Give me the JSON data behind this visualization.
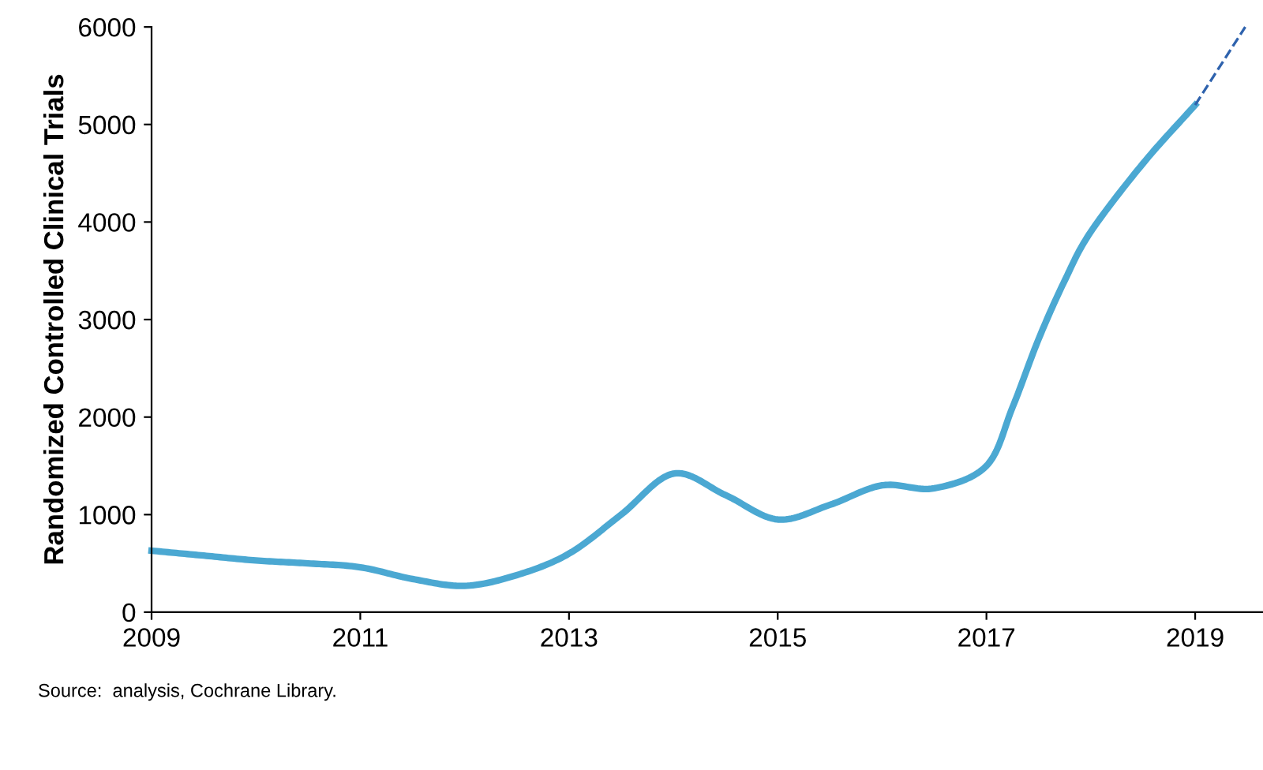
{
  "chart_data": {
    "type": "line",
    "ylabel": "Randomized Controlled Clinical Trials",
    "xlim": [
      2009,
      2019.65
    ],
    "xticks": [
      2009,
      2011,
      2013,
      2015,
      2017,
      2019
    ],
    "ylim": [
      0,
      6000
    ],
    "yticks": [
      0,
      1000,
      2000,
      3000,
      4000,
      5000,
      6000
    ],
    "grid": false,
    "legend": false,
    "series": [
      {
        "color": "#4ba8d2",
        "line_style": "solid",
        "x": [
          2009,
          2009.5,
          2010,
          2010.5,
          2011,
          2011.5,
          2012,
          2012.5,
          2013,
          2013.5,
          2014,
          2014.5,
          2015,
          2015.5,
          2016,
          2016.5,
          2017,
          2017.25,
          2017.5,
          2017.75,
          2018,
          2018.5,
          2019
        ],
        "values": [
          630,
          580,
          530,
          500,
          460,
          340,
          270,
          380,
          600,
          1000,
          1420,
          1200,
          950,
          1100,
          1300,
          1270,
          1500,
          2100,
          2800,
          3400,
          3900,
          4600,
          5200
        ]
      },
      {
        "color": "#2e62ad",
        "line_style": "dashed",
        "x": [
          2019,
          2019.48
        ],
        "values": [
          5200,
          6000
        ]
      }
    ],
    "annotations": [
      "Source:  analysis, Cochrane Library."
    ]
  }
}
